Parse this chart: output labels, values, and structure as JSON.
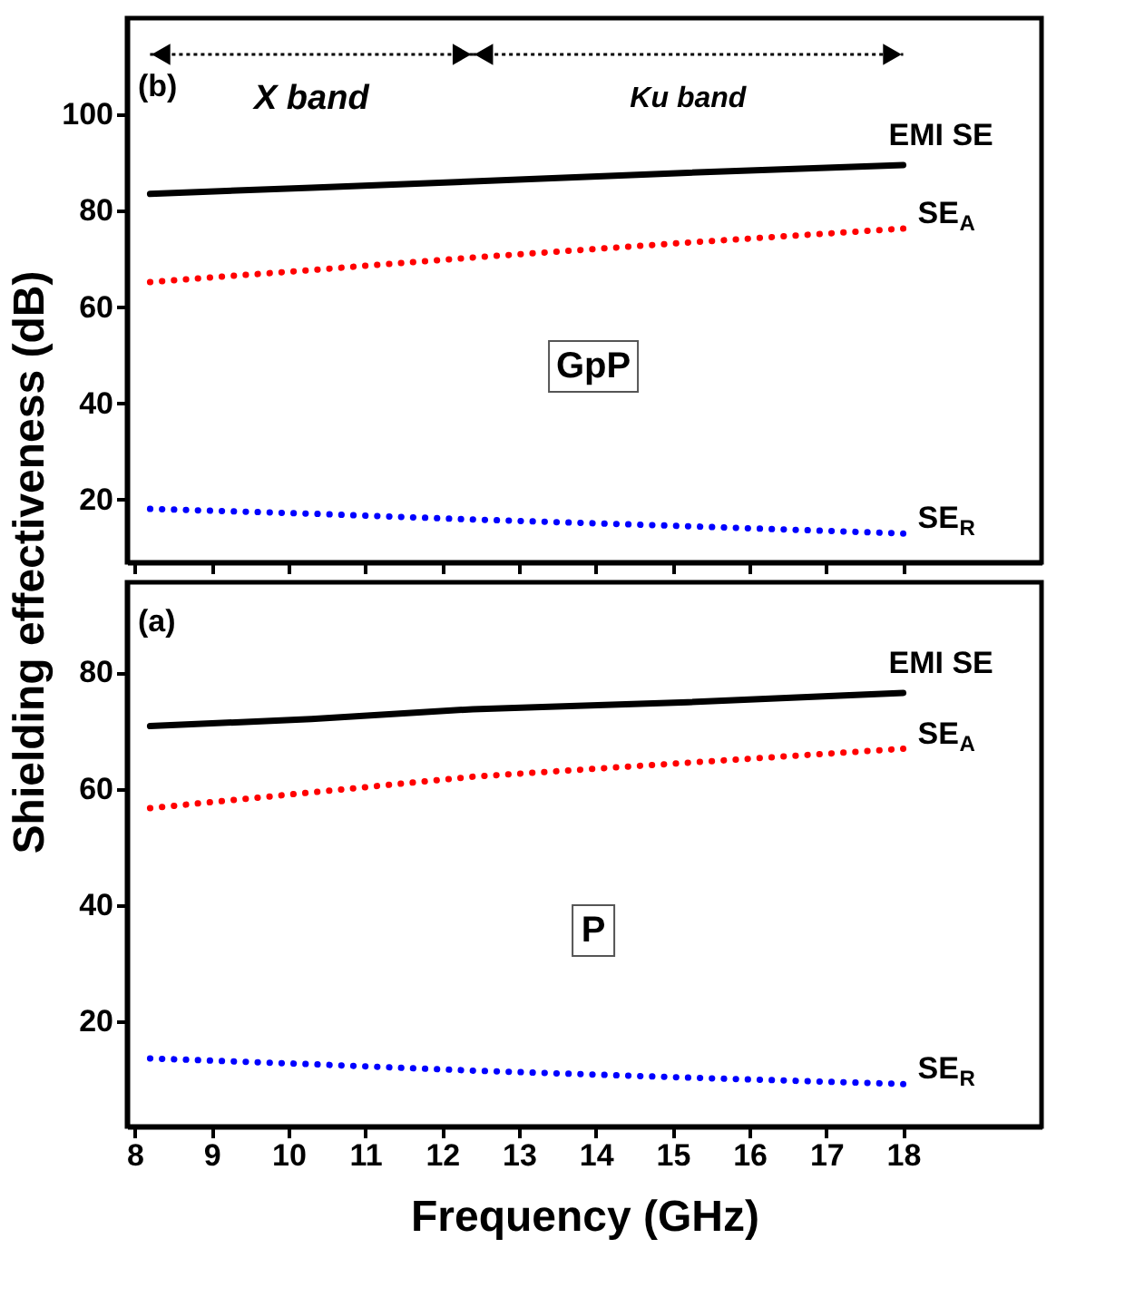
{
  "chart_data": [
    {
      "type": "line",
      "ylabel": "Shielding effectiveness (dB)",
      "xlim": [
        7.9,
        19.8
      ],
      "xticks": [
        8,
        9,
        10,
        11,
        12,
        13,
        14,
        15,
        16,
        17,
        18
      ],
      "ylim": [
        7,
        120
      ],
      "yticks": [
        20,
        40,
        60,
        80,
        100
      ],
      "tick_labels": "y",
      "annotations": [
        "(b)",
        "X band",
        "Ku band",
        "GpP"
      ],
      "series": [
        {
          "name": "EMI SE",
          "color": "#000000",
          "line_style": "solid",
          "x": [
            8.2,
            10.3,
            12.4,
            15.2,
            18
          ],
          "values": [
            83.5,
            84.8,
            86.1,
            87.9,
            89.5
          ]
        },
        {
          "name": "SE$_{A}$",
          "color": "#ff0000",
          "line_style": "dotted",
          "x": [
            8.2,
            10.3,
            12.4,
            15.2,
            18
          ],
          "values": [
            65.2,
            67.7,
            70.3,
            73.4,
            76.3
          ]
        },
        {
          "name": "SE$_{R}$",
          "color": "#0000ff",
          "line_style": "dotted",
          "x": [
            8.2,
            10.3,
            12.4,
            15.2,
            18
          ],
          "values": [
            18.1,
            17.1,
            15.9,
            14.5,
            13.0
          ]
        }
      ]
    },
    {
      "type": "line",
      "xlabel": "Frequency (GHz)",
      "xlim": [
        7.9,
        19.8
      ],
      "xticks": [
        8,
        9,
        10,
        11,
        12,
        13,
        14,
        15,
        16,
        17,
        18
      ],
      "ylim": [
        2,
        95.5
      ],
      "yticks": [
        20,
        40,
        60,
        80
      ],
      "annotations": [
        "(a)",
        "P"
      ],
      "series": [
        {
          "name": "EMI SE",
          "color": "#000000",
          "line_style": "solid",
          "x": [
            8.2,
            10.3,
            12.4,
            15.2,
            18
          ],
          "values": [
            70.8,
            72.0,
            73.7,
            74.9,
            76.5
          ]
        },
        {
          "name": "SE$_{A}$",
          "color": "#ff0000",
          "line_style": "dotted",
          "x": [
            8.2,
            10.3,
            12.4,
            15.2,
            18
          ],
          "values": [
            56.7,
            59.4,
            62.1,
            64.5,
            66.9
          ]
        },
        {
          "name": "SE$_{R}$",
          "color": "#0000ff",
          "line_style": "dotted",
          "x": [
            8.2,
            10.3,
            12.4,
            15.2,
            18
          ],
          "values": [
            13.7,
            12.7,
            11.6,
            10.4,
            9.3
          ]
        }
      ]
    }
  ]
}
